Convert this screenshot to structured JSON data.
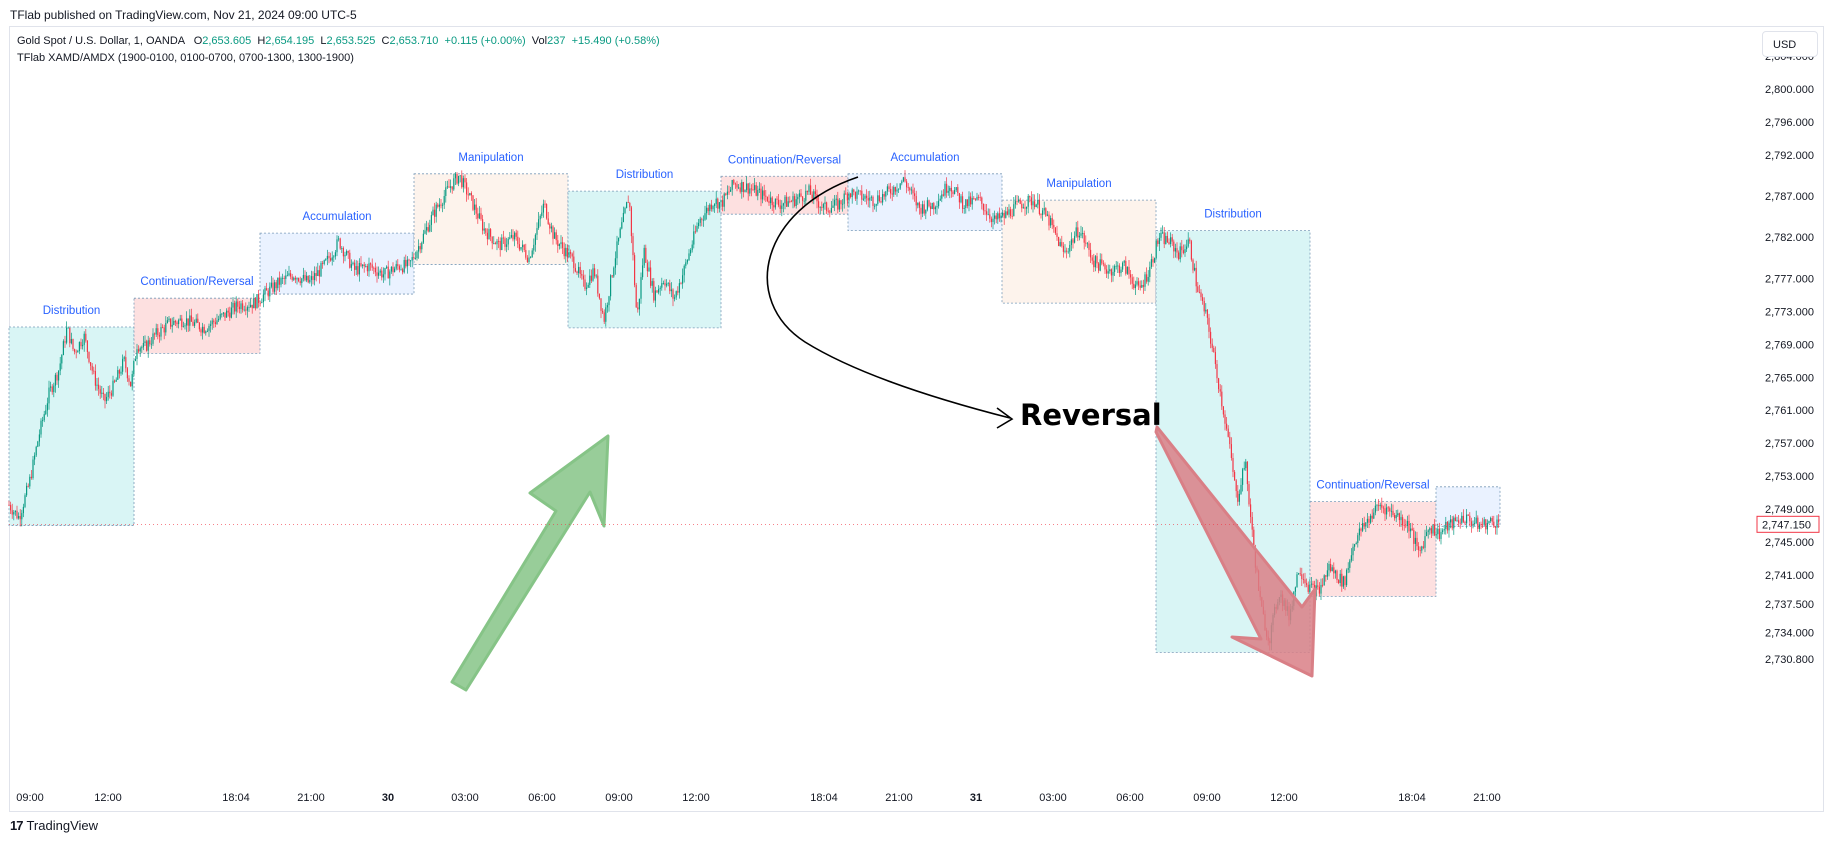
{
  "header": {
    "published_by": "TFlab published on TradingView.com, Nov 21, 2024 09:00 UTC-5"
  },
  "legend": {
    "symbol": "Gold Spot / U.S. Dollar, 1, OANDA",
    "o_label": "O",
    "o_value": "2,653.605",
    "h_label": "H",
    "h_value": "2,654.195",
    "l_label": "L",
    "l_value": "2,653.525",
    "c_label": "C",
    "c_value": "2,653.710",
    "change": "+0.115 (+0.00%)",
    "vol_label": "Vol",
    "vol_value": "237",
    "vol_change": "+15.490 (+0.58%)",
    "indicator": "TFlab XAMD/AMDX (1900-0100, 0100-0700, 0700-1300, 1300-1900)"
  },
  "currency_button": "USD",
  "footer_brand": "TradingView",
  "colors": {
    "up": "#089981",
    "down": "#f23645",
    "label": "#2962ff",
    "distribution": "#d9f5f5",
    "continuation": "#fde0e0",
    "accumulation": "#eaf2ff",
    "manipulation": "#fdf3ec",
    "green_arrow": "#86c487",
    "red_arrow": "#d97f86"
  },
  "chart_data": {
    "type": "candlestick",
    "y_axis": {
      "ticks": [
        "2,804.000",
        "2,800.000",
        "2,796.000",
        "2,792.000",
        "2,787.000",
        "2,782.000",
        "2,777.000",
        "2,773.000",
        "2,769.000",
        "2,765.000",
        "2,761.000",
        "2,757.000",
        "2,753.000",
        "2,749.000",
        "2,745.000",
        "2,741.000",
        "2,737.500",
        "2,734.000",
        "2,730.800"
      ],
      "range": [
        2729.5,
        2806
      ],
      "current_price": "2,747.150"
    },
    "x_axis": {
      "ticks": [
        "09:00",
        "12:00",
        "18:04",
        "21:00",
        "30",
        "03:00",
        "06:00",
        "09:00",
        "12:00",
        "18:04",
        "21:00",
        "31",
        "03:00",
        "06:00",
        "09:00",
        "12:00",
        "18:04",
        "21:00"
      ]
    },
    "sessions": [
      {
        "label": "Distribution",
        "kind": "distribution",
        "start": "09:00",
        "high": 2771.1,
        "low": 2747.0
      },
      {
        "label": "Continuation/Reversal",
        "kind": "continuation",
        "high": 2774.6,
        "low": 2767.9
      },
      {
        "label": "Accumulation",
        "kind": "accumulation",
        "high": 2782.5,
        "low": 2775.1
      },
      {
        "label": "Manipulation",
        "kind": "manipulation",
        "high": 2789.7,
        "low": 2778.7
      },
      {
        "label": "Distribution",
        "kind": "distribution",
        "high": 2787.6,
        "low": 2771.0
      },
      {
        "label": "Continuation/Reversal",
        "kind": "continuation",
        "high": 2789.4,
        "low": 2784.8
      },
      {
        "label": "Accumulation",
        "kind": "accumulation",
        "high": 2789.7,
        "low": 2782.8
      },
      {
        "label": "Manipulation",
        "kind": "manipulation",
        "high": 2786.5,
        "low": 2774.0
      },
      {
        "label": "Distribution",
        "kind": "distribution",
        "high": 2782.8,
        "low": 2731.6
      },
      {
        "label": "Continuation/Reversal",
        "kind": "continuation",
        "high": 2749.9,
        "low": 2738.4
      },
      {
        "label": "",
        "kind": "accumulation",
        "high": 2751.7,
        "low": 2746.9
      }
    ],
    "price_path": [
      [
        0,
        2749.5
      ],
      [
        10,
        2748.0
      ],
      [
        20,
        2752.0
      ],
      [
        30,
        2758.0
      ],
      [
        40,
        2763.0
      ],
      [
        50,
        2766.0
      ],
      [
        58,
        2771.0
      ],
      [
        65,
        2768.0
      ],
      [
        75,
        2770.0
      ],
      [
        85,
        2765.0
      ],
      [
        95,
        2762.0
      ],
      [
        105,
        2764.0
      ],
      [
        115,
        2767.0
      ],
      [
        122,
        2764.0
      ],
      [
        128,
        2769.0
      ],
      [
        135,
        2768.5
      ],
      [
        145,
        2770.0
      ],
      [
        160,
        2771.5
      ],
      [
        175,
        2772.0
      ],
      [
        195,
        2771.0
      ],
      [
        215,
        2772.5
      ],
      [
        230,
        2773.8
      ],
      [
        245,
        2774.0
      ],
      [
        255,
        2775.0
      ],
      [
        270,
        2776.5
      ],
      [
        285,
        2777.5
      ],
      [
        300,
        2776.5
      ],
      [
        315,
        2778.5
      ],
      [
        330,
        2781.5
      ],
      [
        345,
        2778.0
      ],
      [
        360,
        2778.5
      ],
      [
        375,
        2777.5
      ],
      [
        390,
        2778.5
      ],
      [
        400,
        2778.5
      ],
      [
        410,
        2781.0
      ],
      [
        425,
        2785.0
      ],
      [
        440,
        2788.0
      ],
      [
        450,
        2789.5
      ],
      [
        462,
        2786.5
      ],
      [
        475,
        2783.0
      ],
      [
        490,
        2781.0
      ],
      [
        505,
        2782.0
      ],
      [
        520,
        2779.5
      ],
      [
        535,
        2786.0
      ],
      [
        545,
        2782.0
      ],
      [
        555,
        2780.5
      ],
      [
        565,
        2779.0
      ],
      [
        575,
        2776.0
      ],
      [
        585,
        2778.0
      ],
      [
        595,
        2772.0
      ],
      [
        605,
        2779.0
      ],
      [
        612,
        2783.0
      ],
      [
        620,
        2787.0
      ],
      [
        628,
        2772.0
      ],
      [
        635,
        2780.5
      ],
      [
        645,
        2775.0
      ],
      [
        655,
        2777.0
      ],
      [
        665,
        2774.5
      ],
      [
        675,
        2778.0
      ],
      [
        690,
        2784.0
      ],
      [
        705,
        2786.5
      ],
      [
        712,
        2786.0
      ],
      [
        725,
        2788.5
      ],
      [
        740,
        2788.0
      ],
      [
        755,
        2787.0
      ],
      [
        770,
        2786.0
      ],
      [
        785,
        2786.5
      ],
      [
        800,
        2787.5
      ],
      [
        815,
        2785.5
      ],
      [
        830,
        2786.0
      ],
      [
        840,
        2787.5
      ],
      [
        850,
        2787.0
      ],
      [
        865,
        2786.5
      ],
      [
        880,
        2787.5
      ],
      [
        895,
        2789.0
      ],
      [
        910,
        2785.5
      ],
      [
        925,
        2786.0
      ],
      [
        940,
        2788.5
      ],
      [
        955,
        2786.0
      ],
      [
        970,
        2786.5
      ],
      [
        985,
        2784.0
      ],
      [
        995,
        2784.5
      ],
      [
        1010,
        2786.0
      ],
      [
        1025,
        2786.5
      ],
      [
        1040,
        2784.0
      ],
      [
        1055,
        2780.0
      ],
      [
        1070,
        2783.0
      ],
      [
        1085,
        2779.0
      ],
      [
        1100,
        2778.0
      ],
      [
        1115,
        2778.5
      ],
      [
        1130,
        2775.5
      ],
      [
        1140,
        2778.0
      ],
      [
        1150,
        2782.0
      ],
      [
        1160,
        2781.5
      ],
      [
        1170,
        2780.0
      ],
      [
        1180,
        2781.5
      ],
      [
        1188,
        2776.0
      ],
      [
        1198,
        2772.0
      ],
      [
        1210,
        2764.0
      ],
      [
        1220,
        2757.0
      ],
      [
        1228,
        2750.0
      ],
      [
        1236,
        2755.0
      ],
      [
        1244,
        2745.0
      ],
      [
        1252,
        2737.0
      ],
      [
        1260,
        2733.0
      ],
      [
        1270,
        2739.0
      ],
      [
        1280,
        2736.0
      ],
      [
        1290,
        2742.0
      ],
      [
        1300,
        2739.5
      ],
      [
        1310,
        2739.0
      ],
      [
        1320,
        2742.0
      ],
      [
        1335,
        2740.0
      ],
      [
        1345,
        2745.0
      ],
      [
        1355,
        2747.0
      ],
      [
        1370,
        2749.5
      ],
      [
        1385,
        2748.5
      ],
      [
        1400,
        2747.0
      ],
      [
        1410,
        2743.5
      ],
      [
        1420,
        2747.0
      ],
      [
        1430,
        2746.0
      ],
      [
        1440,
        2747.0
      ],
      [
        1455,
        2748.0
      ],
      [
        1470,
        2747.0
      ],
      [
        1485,
        2747.5
      ],
      [
        1491,
        2747.15
      ]
    ]
  },
  "annotations": {
    "reversal_text": "Reversal"
  }
}
